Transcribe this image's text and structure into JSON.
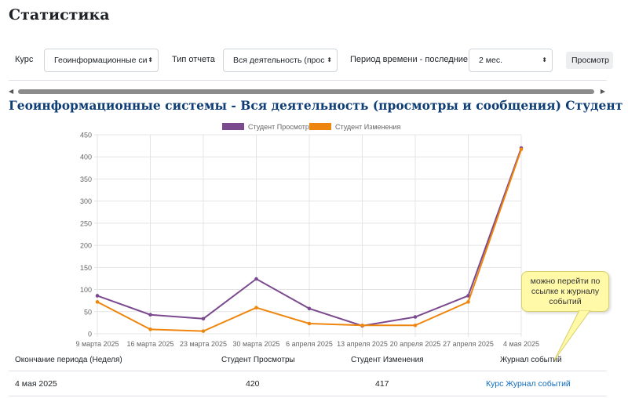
{
  "page_title": "Статистика",
  "filters": {
    "course_label": "Курс",
    "course_value": "Геоинформационные си",
    "report_type_label": "Тип отчета",
    "report_type_value": "Вся деятельность (прос",
    "period_label": "Период времени - последние:",
    "period_value": "2 мес.",
    "view_button": "Просмотр"
  },
  "report_title": "Геоинформационные системы - Вся деятельность (просмотры и сообщения) Студент",
  "chart_data": {
    "type": "line",
    "categories": [
      "9 марта 2025",
      "16 марта 2025",
      "23 марта 2025",
      "30 марта 2025",
      "6 апреля 2025",
      "13 апреля 2025",
      "20 апреля 2025",
      "27 апреля 2025",
      "4 мая 2025"
    ],
    "series": [
      {
        "name": "Студент Просмотры",
        "color": "#7b4a8e",
        "values": [
          86,
          43,
          34,
          124,
          57,
          18,
          38,
          86,
          420
        ]
      },
      {
        "name": "Студент Изменения",
        "color": "#ee860e",
        "values": [
          72,
          10,
          6,
          59,
          23,
          19,
          19,
          72,
          417
        ]
      }
    ],
    "ylim": [
      0,
      450
    ],
    "yticks": [
      0,
      50,
      100,
      150,
      200,
      250,
      300,
      350,
      400,
      450
    ],
    "grid": true,
    "legend": "top"
  },
  "table": {
    "headers": [
      "Окончание периода (Неделя)",
      "Студент Просмотры",
      "Студент Изменения",
      "Журнал событий"
    ],
    "rows": [
      [
        "4 мая 2025",
        "420",
        "417",
        "Курс Журнал событий"
      ]
    ]
  },
  "annotation": "можно перейти по ссылке к журналу событий"
}
